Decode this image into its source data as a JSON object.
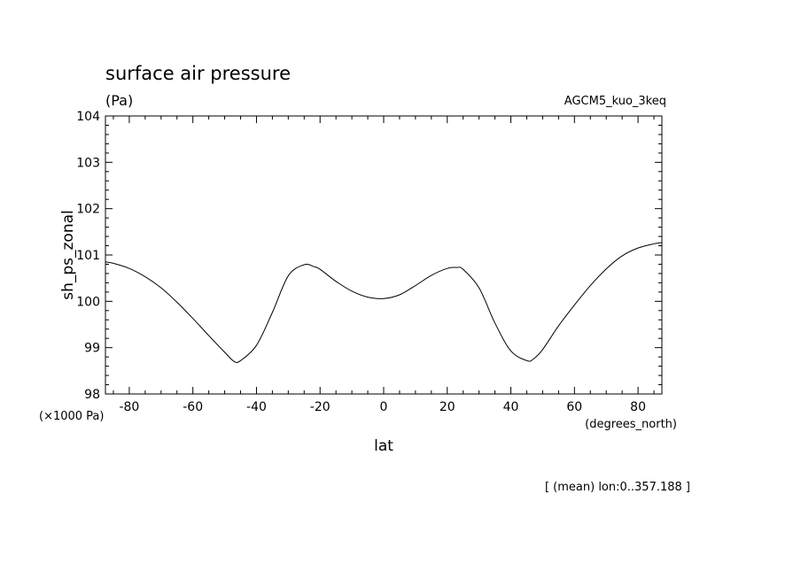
{
  "chart_data": {
    "type": "line",
    "title": "surface air pressure",
    "units": "(Pa)",
    "experiment": "AGCM5_kuo_3keq",
    "xlabel": "lat",
    "xunits": "(degrees_north)",
    "ylabel": "sh_ps_zonal",
    "yscale_note": "(×1000 Pa)",
    "footnote": "[ (mean) lon:0..357.188 ]",
    "xlim": [
      -87.5,
      87.5
    ],
    "ylim": [
      98,
      104
    ],
    "xticks": [
      -80,
      -60,
      -40,
      -20,
      0,
      20,
      40,
      60,
      80
    ],
    "xtick_labels": [
      "-80",
      "-60",
      "-40",
      "-20",
      "0",
      "20",
      "40",
      "60",
      "80"
    ],
    "yticks": [
      98,
      99,
      100,
      101,
      102,
      103,
      104
    ],
    "ytick_labels": [
      "98",
      "99",
      "100",
      "101",
      "102",
      "103",
      "104"
    ],
    "grid": false,
    "series": [
      {
        "x": [
          -87.5,
          -85,
          -80,
          -75,
          -70,
          -65,
          -60,
          -55,
          -50,
          -47,
          -45,
          -40,
          -35,
          -30,
          -25,
          -22,
          -20,
          -15,
          -10,
          -5,
          0,
          5,
          10,
          15,
          20,
          23,
          25,
          30,
          35,
          40,
          45,
          47,
          50,
          55,
          60,
          65,
          70,
          75,
          80,
          85,
          87.5
        ],
        "values": [
          100.85,
          100.82,
          100.71,
          100.53,
          100.29,
          99.98,
          99.63,
          99.26,
          98.9,
          98.7,
          98.72,
          99.05,
          99.76,
          100.55,
          100.79,
          100.75,
          100.69,
          100.43,
          100.22,
          100.09,
          100.06,
          100.14,
          100.34,
          100.56,
          100.71,
          100.73,
          100.69,
          100.29,
          99.53,
          98.93,
          98.72,
          98.75,
          98.96,
          99.47,
          99.92,
          100.34,
          100.7,
          100.98,
          101.15,
          101.24,
          101.27
        ]
      }
    ]
  }
}
